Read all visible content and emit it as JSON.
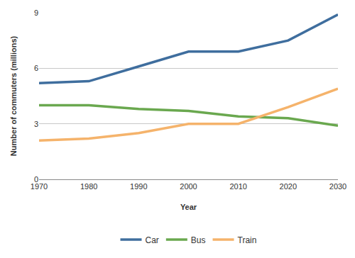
{
  "chart_data": {
    "type": "line",
    "x_label": "Year",
    "y_label": "Number of commuters (millions)",
    "x": [
      1970,
      1980,
      1990,
      2000,
      2010,
      2020,
      2030
    ],
    "series": [
      {
        "name": "Car",
        "color": "#3f6e9e",
        "values": [
          5.2,
          5.3,
          6.1,
          6.9,
          6.9,
          7.5,
          8.9
        ]
      },
      {
        "name": "Bus",
        "color": "#6aa84f",
        "values": [
          4.0,
          4.0,
          3.8,
          3.7,
          3.4,
          3.3,
          2.9
        ]
      },
      {
        "name": "Train",
        "color": "#f5b36b",
        "values": [
          2.1,
          2.2,
          2.5,
          3.0,
          3.0,
          3.9,
          4.9
        ]
      }
    ],
    "xlim": [
      1970,
      2030
    ],
    "xticks": [
      1970,
      1980,
      1990,
      2000,
      2010,
      2020,
      2030
    ],
    "ylim": [
      0,
      9
    ],
    "yticks": [
      0,
      3,
      6,
      9
    ],
    "grid": true,
    "legend": "bottom"
  }
}
